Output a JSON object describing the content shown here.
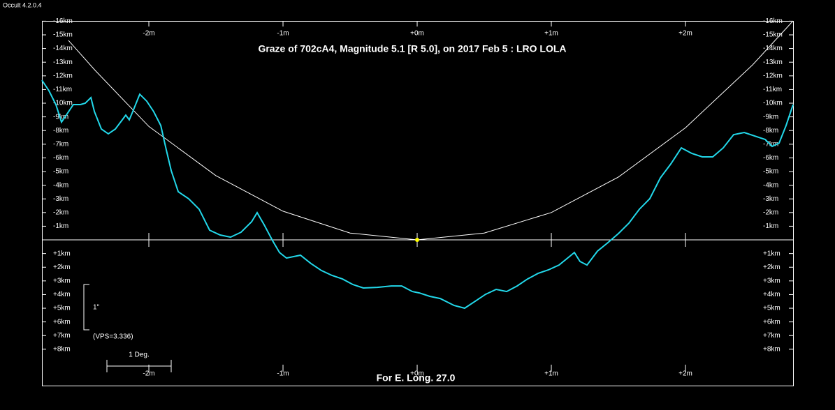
{
  "window_title": "Occult 4.2.0.4",
  "chart_data": {
    "type": "line",
    "title": "Graze of  702cA4,  Magnitude 5.1 [R 5.0],  on 2017 Feb  5  :  LRO LOLA",
    "xlabel": "For E. Long. 27.0",
    "annotations": [
      "1\"",
      "(VPS=3.336)",
      "1 Deg."
    ],
    "xlim": [
      -2.797,
      2.802
    ],
    "ylim": [
      -16.02,
      10.66
    ],
    "y_inverted": true,
    "xticks": [
      {
        "value": -2,
        "label": "-2m"
      },
      {
        "value": -1,
        "label": "-1m"
      },
      {
        "value": 0,
        "label": "+0m"
      },
      {
        "value": 1,
        "label": "+1m"
      },
      {
        "value": 2,
        "label": "+2m"
      }
    ],
    "yticks": [
      {
        "value": -16,
        "label": "-16km"
      },
      {
        "value": -15,
        "label": "-15km"
      },
      {
        "value": -14,
        "label": "-14km"
      },
      {
        "value": -13,
        "label": "-13km"
      },
      {
        "value": -12,
        "label": "-12km"
      },
      {
        "value": -11,
        "label": "-11km"
      },
      {
        "value": -10,
        "label": "-10km"
      },
      {
        "value": -9,
        "label": "-9km"
      },
      {
        "value": -8,
        "label": "-8km"
      },
      {
        "value": -7,
        "label": "-7km"
      },
      {
        "value": -6,
        "label": "-6km"
      },
      {
        "value": -5,
        "label": "-5km"
      },
      {
        "value": -4,
        "label": "-4km"
      },
      {
        "value": -3,
        "label": "-3km"
      },
      {
        "value": -2,
        "label": "-2km"
      },
      {
        "value": -1,
        "label": "-1km"
      },
      {
        "value": 1,
        "label": "+1km"
      },
      {
        "value": 2,
        "label": "+2km"
      },
      {
        "value": 3,
        "label": "+3km"
      },
      {
        "value": 4,
        "label": "+4km"
      },
      {
        "value": 5,
        "label": "+5km"
      },
      {
        "value": 6,
        "label": "+6km"
      },
      {
        "value": 7,
        "label": "+7km"
      },
      {
        "value": 8,
        "label": "+8km"
      }
    ],
    "series": [
      {
        "color": "#ffffff",
        "style": "line",
        "x": [
          -2.6,
          -2.4,
          -2.0,
          -1.5,
          -1.0,
          -0.5,
          0,
          0.5,
          1.0,
          1.5,
          2.0,
          2.5,
          2.8
        ],
        "values": [
          -14.6,
          -12.4,
          -8.3,
          -4.7,
          -2.1,
          -0.5,
          0,
          -0.5,
          -2.0,
          -4.6,
          -8.2,
          -12.8,
          -16.0
        ]
      },
      {
        "color": "#22d8ea",
        "style": "line",
        "x": [
          -2.797,
          -2.745,
          -2.693,
          -2.651,
          -2.615,
          -2.563,
          -2.51,
          -2.474,
          -2.432,
          -2.406,
          -2.354,
          -2.302,
          -2.25,
          -2.198,
          -2.172,
          -2.146,
          -2.12,
          -2.068,
          -2.016,
          -1.964,
          -1.911,
          -1.87,
          -1.833,
          -1.781,
          -1.703,
          -1.625,
          -1.547,
          -1.469,
          -1.391,
          -1.313,
          -1.234,
          -1.193,
          -1.141,
          -1.078,
          -1.026,
          -0.974,
          -0.87,
          -0.792,
          -0.714,
          -0.635,
          -0.557,
          -0.479,
          -0.401,
          -0.297,
          -0.193,
          -0.115,
          -0.036,
          0.016,
          0.094,
          0.172,
          0.276,
          0.354,
          0.432,
          0.51,
          0.589,
          0.667,
          0.745,
          0.823,
          0.901,
          0.979,
          1.057,
          1.135,
          1.172,
          1.214,
          1.266,
          1.344,
          1.422,
          1.5,
          1.578,
          1.656,
          1.734,
          1.813,
          1.891,
          1.969,
          2.047,
          2.125,
          2.203,
          2.281,
          2.359,
          2.438,
          2.516,
          2.594,
          2.646,
          2.698,
          2.75,
          2.802
        ],
        "values": [
          -11.68,
          -10.92,
          -9.9,
          -8.62,
          -9.13,
          -9.9,
          -9.9,
          -10.0,
          -10.41,
          -9.39,
          -8.11,
          -7.76,
          -8.11,
          -8.78,
          -9.13,
          -8.78,
          -9.39,
          -10.66,
          -10.15,
          -9.39,
          -8.37,
          -6.58,
          -5.05,
          -3.52,
          -3.01,
          -2.24,
          -0.71,
          -0.36,
          -0.2,
          -0.56,
          -1.33,
          -1.99,
          -1.12,
          0.05,
          0.92,
          1.33,
          1.12,
          1.73,
          2.24,
          2.6,
          2.86,
          3.27,
          3.52,
          3.47,
          3.37,
          3.37,
          3.78,
          3.88,
          4.13,
          4.29,
          4.8,
          5.0,
          4.49,
          3.98,
          3.62,
          3.78,
          3.37,
          2.86,
          2.45,
          2.19,
          1.84,
          1.22,
          0.92,
          1.58,
          1.84,
          0.82,
          0.2,
          -0.46,
          -1.22,
          -2.24,
          -3.01,
          -4.54,
          -5.56,
          -6.73,
          -6.33,
          -6.07,
          -6.07,
          -6.73,
          -7.7,
          -7.86,
          -7.6,
          -7.35,
          -6.84,
          -7.09,
          -8.37,
          -9.9
        ]
      },
      {
        "color": "#ffff00",
        "style": "point",
        "x": [
          0
        ],
        "values": [
          0
        ]
      }
    ]
  }
}
